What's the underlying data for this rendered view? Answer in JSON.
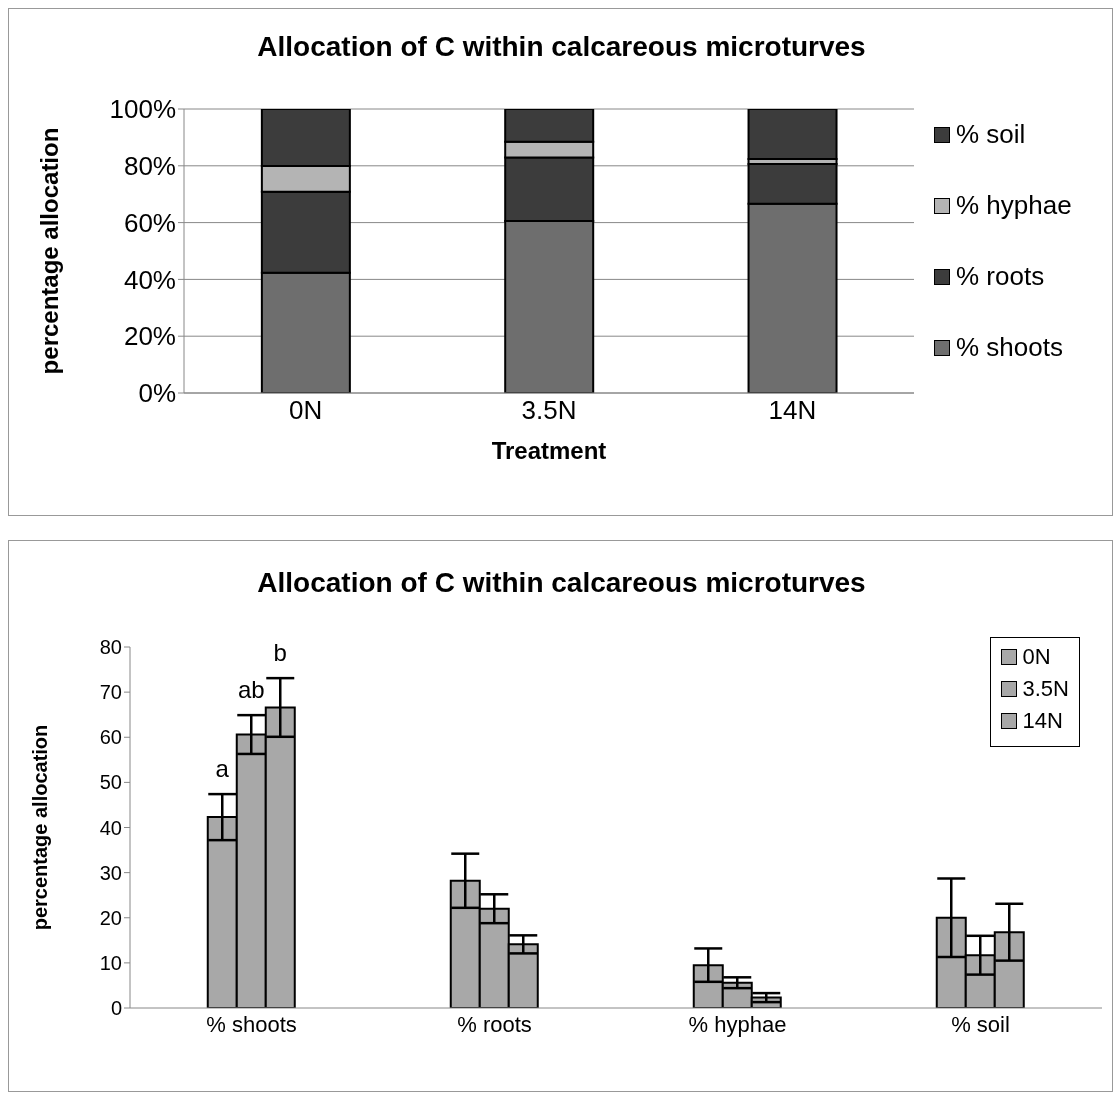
{
  "chart_data": [
    {
      "type": "bar",
      "title": "Allocation of C within calcareous microturves",
      "xlabel": "Treatment",
      "ylabel": "percentage allocation",
      "categories": [
        "0N",
        "3.5N",
        "14N"
      ],
      "stacked": true,
      "ylim": [
        0,
        100
      ],
      "yticks": [
        {
          "value": 0,
          "label": "0%"
        },
        {
          "value": 20,
          "label": "20%"
        },
        {
          "value": 40,
          "label": "40%"
        },
        {
          "value": 60,
          "label": "60%"
        },
        {
          "value": 80,
          "label": "80%"
        },
        {
          "value": 100,
          "label": "100%"
        }
      ],
      "grid": "y",
      "legend": "right",
      "series": [
        {
          "name": "% shoots",
          "color": "#6e6e6e",
          "values": [
            42.3,
            60.6,
            66.6
          ]
        },
        {
          "name": "% roots",
          "color": "#3c3c3c",
          "values": [
            28.6,
            22.3,
            14
          ]
        },
        {
          "name": "% hyphae",
          "color": "#b4b4b4",
          "values": [
            9,
            5.6,
            1.8
          ]
        },
        {
          "name": "% soil",
          "color": "#3c3c3c",
          "values": [
            20.1,
            11.5,
            17.6
          ]
        }
      ]
    },
    {
      "type": "bar",
      "title": "Allocation of C within calcareous microturves",
      "ylabel": "percentage allocation",
      "categories": [
        "% shoots",
        "% roots",
        "% hyphae",
        "% soil"
      ],
      "ylim": [
        0,
        80
      ],
      "yticks": [
        0,
        10,
        20,
        30,
        40,
        50,
        60,
        70,
        80
      ],
      "grid": false,
      "legend": "top right",
      "annotations": [
        "a",
        "ab",
        "b"
      ],
      "series": [
        {
          "name": "0N",
          "color": "#a8a8a8",
          "values": [
            42.3,
            28.2,
            9.5,
            20
          ],
          "errors": [
            5.1,
            6,
            3.7,
            8.7
          ]
        },
        {
          "name": "3.5N",
          "color": "#a8a8a8",
          "values": [
            60.6,
            22,
            5.6,
            11.7
          ],
          "errors": [
            4.3,
            3.2,
            1.2,
            4.3
          ]
        },
        {
          "name": "14N",
          "color": "#a8a8a8",
          "values": [
            66.6,
            14.1,
            2.3,
            16.8
          ],
          "errors": [
            6.5,
            2,
            1,
            6.3
          ]
        }
      ]
    }
  ]
}
